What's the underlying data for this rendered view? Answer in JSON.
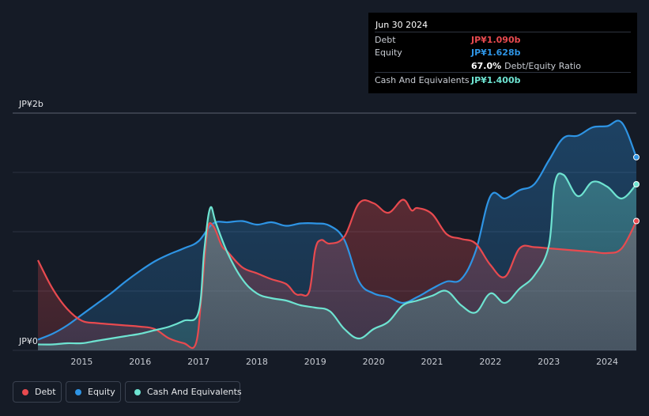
{
  "tooltip": {
    "date": "Jun 30 2024",
    "debt_label": "Debt",
    "debt_value": "JP¥1.090b",
    "equity_label": "Equity",
    "equity_value": "JP¥1.628b",
    "ratio_value": "67.0%",
    "ratio_label": "Debt/Equity Ratio",
    "cash_label": "Cash And Equivalents",
    "cash_value": "JP¥1.400b"
  },
  "legend": {
    "debt": "Debt",
    "equity": "Equity",
    "cash": "Cash And Equivalents"
  },
  "colors": {
    "debt": "#e84a4f",
    "equity": "#2e94e4",
    "cash": "#6ee3d1",
    "background": "#151b26"
  },
  "chart_data": {
    "type": "area",
    "y_tick_labels": [
      "JP¥0",
      "JP¥2b"
    ],
    "ylim": [
      0,
      2.0
    ],
    "xlim": [
      2014.25,
      2024.5
    ],
    "x_tick_labels": [
      "2015",
      "2016",
      "2017",
      "2018",
      "2019",
      "2020",
      "2021",
      "2022",
      "2023",
      "2024"
    ],
    "grid": true,
    "legend_position": "bottom-left",
    "series": [
      {
        "name": "Debt",
        "color": "#e84a4f",
        "x": [
          2014.25,
          2014.5,
          2014.75,
          2015.0,
          2015.25,
          2015.5,
          2015.75,
          2016.0,
          2016.25,
          2016.5,
          2016.75,
          2016.95,
          2017.05,
          2017.15,
          2017.25,
          2017.4,
          2017.5,
          2017.75,
          2018.0,
          2018.25,
          2018.5,
          2018.65,
          2018.75,
          2018.9,
          2019.0,
          2019.1,
          2019.25,
          2019.5,
          2019.75,
          2020.0,
          2020.25,
          2020.5,
          2020.65,
          2020.75,
          2021.0,
          2021.25,
          2021.5,
          2021.75,
          2022.0,
          2022.25,
          2022.5,
          2022.75,
          2023.0,
          2023.25,
          2023.5,
          2023.75,
          2024.0,
          2024.25,
          2024.5
        ],
        "values": [
          0.76,
          0.52,
          0.35,
          0.25,
          0.23,
          0.22,
          0.21,
          0.2,
          0.18,
          0.1,
          0.06,
          0.05,
          0.45,
          1.0,
          1.05,
          0.88,
          0.83,
          0.7,
          0.65,
          0.6,
          0.56,
          0.48,
          0.47,
          0.5,
          0.85,
          0.93,
          0.9,
          0.96,
          1.24,
          1.24,
          1.16,
          1.27,
          1.18,
          1.2,
          1.15,
          0.98,
          0.94,
          0.9,
          0.72,
          0.62,
          0.86,
          0.87,
          0.86,
          0.85,
          0.84,
          0.83,
          0.82,
          0.86,
          1.09
        ]
      },
      {
        "name": "Equity",
        "color": "#2e94e4",
        "x": [
          2014.25,
          2014.5,
          2014.75,
          2015.0,
          2015.25,
          2015.5,
          2015.75,
          2016.0,
          2016.25,
          2016.5,
          2016.75,
          2017.0,
          2017.25,
          2017.5,
          2017.75,
          2018.0,
          2018.25,
          2018.5,
          2018.75,
          2019.0,
          2019.25,
          2019.5,
          2019.75,
          2020.0,
          2020.25,
          2020.5,
          2020.75,
          2021.0,
          2021.25,
          2021.5,
          2021.75,
          2022.0,
          2022.25,
          2022.5,
          2022.75,
          2023.0,
          2023.25,
          2023.5,
          2023.75,
          2024.0,
          2024.25,
          2024.5
        ],
        "values": [
          0.09,
          0.14,
          0.21,
          0.3,
          0.39,
          0.48,
          0.58,
          0.67,
          0.75,
          0.81,
          0.86,
          0.92,
          1.07,
          1.08,
          1.09,
          1.06,
          1.08,
          1.05,
          1.07,
          1.07,
          1.05,
          0.93,
          0.58,
          0.48,
          0.45,
          0.4,
          0.45,
          0.52,
          0.58,
          0.6,
          0.84,
          1.3,
          1.28,
          1.35,
          1.4,
          1.6,
          1.79,
          1.81,
          1.88,
          1.89,
          1.92,
          1.628
        ]
      },
      {
        "name": "Cash And Equivalents",
        "color": "#6ee3d1",
        "x": [
          2014.25,
          2014.5,
          2014.75,
          2015.0,
          2015.25,
          2015.5,
          2015.75,
          2016.0,
          2016.25,
          2016.5,
          2016.75,
          2017.0,
          2017.1,
          2017.2,
          2017.3,
          2017.5,
          2017.75,
          2018.0,
          2018.25,
          2018.5,
          2018.75,
          2019.0,
          2019.25,
          2019.5,
          2019.75,
          2020.0,
          2020.25,
          2020.5,
          2020.75,
          2021.0,
          2021.25,
          2021.5,
          2021.75,
          2022.0,
          2022.25,
          2022.5,
          2022.75,
          2023.0,
          2023.1,
          2023.25,
          2023.5,
          2023.75,
          2024.0,
          2024.25,
          2024.5
        ],
        "values": [
          0.05,
          0.05,
          0.06,
          0.06,
          0.08,
          0.1,
          0.12,
          0.14,
          0.17,
          0.2,
          0.25,
          0.32,
          0.85,
          1.2,
          1.07,
          0.82,
          0.6,
          0.48,
          0.44,
          0.42,
          0.38,
          0.36,
          0.33,
          0.18,
          0.1,
          0.18,
          0.24,
          0.38,
          0.42,
          0.46,
          0.5,
          0.38,
          0.32,
          0.48,
          0.4,
          0.52,
          0.63,
          0.88,
          1.4,
          1.48,
          1.3,
          1.42,
          1.38,
          1.28,
          1.4
        ]
      }
    ]
  }
}
